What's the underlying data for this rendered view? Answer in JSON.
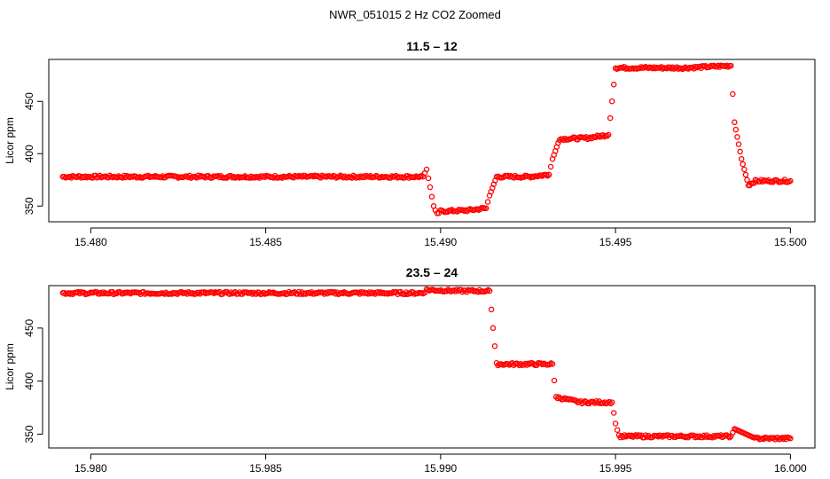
{
  "figure": {
    "title": "NWR_051015  2 Hz CO2 Zoomed"
  },
  "chart_data": [
    {
      "type": "scatter",
      "title": "11.5 – 12",
      "xlabel": "",
      "ylabel": "Licor ppm",
      "xlim": [
        15.4788,
        15.5007
      ],
      "ylim": [
        335,
        490
      ],
      "x_ticks": [
        15.48,
        15.485,
        15.49,
        15.495,
        15.5
      ],
      "x_tick_labels": [
        "15.480",
        "15.485",
        "15.490",
        "15.495",
        "15.500"
      ],
      "y_ticks": [
        350,
        400,
        450
      ],
      "y_tick_labels": [
        "350",
        "400",
        "450"
      ],
      "grid": false,
      "marker": "open-circle",
      "color": "#ff0000",
      "series": [
        {
          "x": [
            15.4792,
            15.4825,
            15.486,
            15.4895,
            15.4896,
            15.4897,
            15.4898,
            15.4899,
            15.49,
            15.4908,
            15.4913,
            15.4914,
            15.4916,
            15.4925,
            15.4931,
            15.4932,
            15.4934,
            15.4942,
            15.4948,
            15.4949,
            15.495,
            15.497,
            15.4983,
            15.4984,
            15.4986,
            15.4988,
            15.499,
            15.4995,
            15.5
          ],
          "y": [
            378,
            378,
            378,
            378,
            385,
            368,
            350,
            342,
            345,
            346,
            348,
            360,
            378,
            378,
            380,
            395,
            414,
            415,
            418,
            450,
            482,
            482,
            484,
            430,
            395,
            370,
            374,
            374,
            374
          ]
        }
      ]
    },
    {
      "type": "scatter",
      "title": "23.5 – 24",
      "xlabel": "",
      "ylabel": "Licor ppm",
      "xlim": [
        15.9788,
        16.0007
      ],
      "ylim": [
        337,
        490
      ],
      "x_ticks": [
        15.98,
        15.985,
        15.99,
        15.995,
        16.0
      ],
      "x_tick_labels": [
        "15.980",
        "15.985",
        "15.990",
        "15.995",
        "16.000"
      ],
      "y_ticks": [
        350,
        400,
        450
      ],
      "y_tick_labels": [
        "350",
        "400",
        "450"
      ],
      "grid": false,
      "marker": "open-circle",
      "color": "#ff0000",
      "series": [
        {
          "x": [
            15.9792,
            15.983,
            15.987,
            15.9895,
            15.9896,
            15.9905,
            15.9914,
            15.9915,
            15.9916,
            15.9925,
            15.9932,
            15.9933,
            15.994,
            15.9949,
            15.995,
            15.9951,
            15.9965,
            15.9983,
            15.9984,
            15.999,
            16.0
          ],
          "y": [
            483,
            483,
            483,
            483,
            486,
            485,
            485,
            450,
            416,
            416,
            416,
            385,
            380,
            380,
            360,
            348,
            348,
            348,
            355,
            346,
            346
          ]
        }
      ]
    }
  ]
}
